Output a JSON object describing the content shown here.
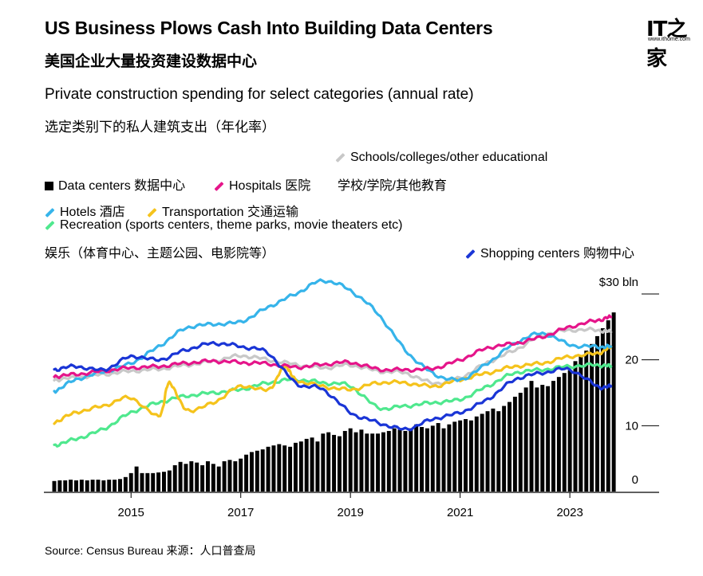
{
  "title": "US Business Plows Cash Into Building Data Centers",
  "title_cn": "美国企业大量投资建设数据中心",
  "subtitle": "Private construction spending for select categories (annual rate)",
  "subtitle_cn": "选定类别下的私人建筑支出（年化率）",
  "logo": {
    "big": "IT之家",
    "small": "www.ithome.com"
  },
  "legend": {
    "schools": "Schools/colleges/other educational",
    "data_centers": "Data centers 数据中心",
    "hospitals": "Hospitals 医院",
    "schools_cn": "学校/学院/其他教育",
    "hotels": "Hotels 酒店",
    "transportation": "Transportation 交通运输",
    "recreation": "Recreation (sports centers, theme parks, movie theaters etc)",
    "recreation_cn": "娱乐（体育中心、主题公园、电影院等）",
    "shopping": "Shopping centers 购物中心"
  },
  "source": "Source: Census Bureau 来源：人口普查局",
  "colors": {
    "data_centers": "#000000",
    "hospitals": "#e5158a",
    "schools": "#c8c8c8",
    "hotels": "#36b4ea",
    "transportation": "#f5c31c",
    "recreation": "#4fe88e",
    "shopping": "#1a35d6"
  },
  "chart_data": {
    "type": "bar+line",
    "title": "US Business Plows Cash Into Building Data Centers",
    "units": "$ bln",
    "x_range": [
      2013.6,
      2023.9
    ],
    "ylim": [
      0,
      30
    ],
    "y_ticks": [
      {
        "value": 0,
        "label": "0"
      },
      {
        "value": 10,
        "label": "10"
      },
      {
        "value": 20,
        "label": "20"
      },
      {
        "value": 30,
        "label": "$30 bln"
      }
    ],
    "x_ticks": [
      {
        "value": 2015,
        "label": "2015"
      },
      {
        "value": 2017,
        "label": "2017"
      },
      {
        "value": 2019,
        "label": "2019"
      },
      {
        "value": 2021,
        "label": "2021"
      },
      {
        "value": 2023,
        "label": "2023"
      }
    ],
    "bars": {
      "name": "Data centers",
      "x": [
        2013.6,
        2013.7,
        2013.8,
        2013.9,
        2014.0,
        2014.1,
        2014.2,
        2014.3,
        2014.4,
        2014.5,
        2014.6,
        2014.7,
        2014.8,
        2014.9,
        2015.0,
        2015.1,
        2015.2,
        2015.3,
        2015.4,
        2015.5,
        2015.6,
        2015.7,
        2015.8,
        2015.9,
        2016.0,
        2016.1,
        2016.2,
        2016.3,
        2016.4,
        2016.5,
        2016.6,
        2016.7,
        2016.8,
        2016.9,
        2017.0,
        2017.1,
        2017.2,
        2017.3,
        2017.4,
        2017.5,
        2017.6,
        2017.7,
        2017.8,
        2017.9,
        2018.0,
        2018.1,
        2018.2,
        2018.3,
        2018.4,
        2018.5,
        2018.6,
        2018.7,
        2018.8,
        2018.9,
        2019.0,
        2019.1,
        2019.2,
        2019.3,
        2019.4,
        2019.5,
        2019.6,
        2019.7,
        2019.8,
        2019.9,
        2020.0,
        2020.1,
        2020.2,
        2020.3,
        2020.4,
        2020.5,
        2020.6,
        2020.7,
        2020.8,
        2020.9,
        2021.0,
        2021.1,
        2021.2,
        2021.3,
        2021.4,
        2021.5,
        2021.6,
        2021.7,
        2021.8,
        2021.9,
        2022.0,
        2022.1,
        2022.2,
        2022.3,
        2022.4,
        2022.5,
        2022.6,
        2022.7,
        2022.8,
        2022.9,
        2023.0,
        2023.1,
        2023.2,
        2023.3,
        2023.4,
        2023.5,
        2023.6,
        2023.7,
        2023.8
      ],
      "values": [
        1.6,
        1.7,
        1.7,
        1.8,
        1.7,
        1.8,
        1.7,
        1.8,
        1.8,
        1.7,
        1.8,
        1.8,
        1.9,
        2.2,
        2.8,
        3.8,
        2.8,
        2.8,
        2.8,
        2.9,
        3.0,
        3.2,
        4.0,
        4.5,
        4.2,
        4.6,
        4.4,
        4.0,
        4.6,
        4.2,
        3.8,
        4.6,
        4.8,
        4.6,
        5.0,
        5.6,
        6.0,
        6.2,
        6.4,
        6.8,
        7.0,
        7.2,
        7.0,
        6.8,
        7.4,
        7.6,
        8.0,
        8.2,
        7.6,
        8.8,
        9.0,
        8.6,
        8.4,
        9.2,
        9.6,
        9.0,
        9.4,
        8.8,
        8.8,
        8.8,
        9.0,
        9.2,
        9.6,
        9.4,
        9.2,
        9.6,
        10.2,
        9.8,
        9.6,
        10.0,
        10.4,
        9.6,
        10.2,
        10.6,
        10.8,
        11.0,
        10.8,
        11.4,
        11.8,
        12.2,
        12.6,
        12.2,
        13.0,
        13.6,
        14.4,
        15.0,
        15.8,
        16.8,
        15.8,
        16.2,
        16.0,
        16.8,
        17.4,
        18.0,
        18.4,
        19.8,
        20.6,
        21.4,
        22.4,
        23.6,
        24.8,
        26.0,
        27.2
      ]
    },
    "series": [
      {
        "name": "Hospitals",
        "color": "#e5158a",
        "x": [
          2013.6,
          2014.0,
          2014.5,
          2015.0,
          2015.5,
          2016.0,
          2016.5,
          2017.0,
          2017.5,
          2018.0,
          2018.5,
          2019.0,
          2019.5,
          2020.0,
          2020.5,
          2021.0,
          2021.5,
          2022.0,
          2022.5,
          2023.0,
          2023.5,
          2023.75
        ],
        "values": [
          17.5,
          17.8,
          18.3,
          18.8,
          19.0,
          19.5,
          19.8,
          19.6,
          19.4,
          18.9,
          19.3,
          19.6,
          18.6,
          18.5,
          18.7,
          20.0,
          21.8,
          22.5,
          23.5,
          25.0,
          26.0,
          26.5
        ]
      },
      {
        "name": "Schools/colleges/other educational",
        "color": "#c8c8c8",
        "x": [
          2013.6,
          2014.0,
          2014.5,
          2015.0,
          2015.5,
          2016.0,
          2016.5,
          2017.0,
          2017.5,
          2018.0,
          2018.5,
          2019.0,
          2019.5,
          2020.0,
          2020.5,
          2021.0,
          2021.5,
          2022.0,
          2022.5,
          2023.0,
          2023.5,
          2023.75
        ],
        "values": [
          17.0,
          17.3,
          17.8,
          18.3,
          18.6,
          19.2,
          19.8,
          20.6,
          20.0,
          19.3,
          18.8,
          19.2,
          18.3,
          18.0,
          16.5,
          17.3,
          19.6,
          21.5,
          23.7,
          24.5,
          24.5,
          24.2
        ]
      },
      {
        "name": "Hotels",
        "color": "#36b4ea",
        "x": [
          2013.6,
          2014.0,
          2014.5,
          2015.0,
          2015.5,
          2016.0,
          2016.5,
          2017.0,
          2017.5,
          2018.0,
          2018.5,
          2019.0,
          2019.5,
          2020.0,
          2020.5,
          2021.0,
          2021.5,
          2022.0,
          2022.5,
          2023.0,
          2023.5,
          2023.75
        ],
        "values": [
          15.2,
          17.0,
          18.2,
          19.5,
          22.0,
          24.8,
          25.4,
          25.8,
          28.0,
          30.0,
          32.0,
          30.5,
          27.0,
          21.5,
          18.0,
          17.0,
          19.5,
          22.5,
          24.0,
          22.3,
          22.0,
          22.0
        ]
      },
      {
        "name": "Transportation",
        "color": "#f5c31c",
        "x": [
          2013.6,
          2014.0,
          2014.5,
          2015.0,
          2015.5,
          2015.7,
          2016.0,
          2016.5,
          2017.0,
          2017.5,
          2017.8,
          2018.0,
          2018.5,
          2019.0,
          2019.5,
          2020.0,
          2020.5,
          2021.0,
          2021.5,
          2022.0,
          2022.5,
          2023.0,
          2023.5,
          2023.75
        ],
        "values": [
          10.5,
          12.0,
          13.0,
          14.2,
          11.5,
          16.5,
          12.5,
          13.5,
          16.0,
          15.5,
          19.0,
          17.0,
          16.0,
          15.5,
          16.5,
          16.5,
          16.0,
          17.0,
          18.0,
          19.0,
          19.5,
          20.5,
          21.0,
          22.0
        ]
      },
      {
        "name": "Recreation",
        "color": "#4fe88e",
        "x": [
          2013.6,
          2014.0,
          2014.5,
          2015.0,
          2015.5,
          2016.0,
          2016.5,
          2017.0,
          2017.5,
          2018.0,
          2018.5,
          2019.0,
          2019.5,
          2020.0,
          2020.5,
          2021.0,
          2021.5,
          2022.0,
          2022.5,
          2023.0,
          2023.5,
          2023.75
        ],
        "values": [
          7.0,
          8.0,
          9.5,
          12.0,
          13.5,
          14.5,
          15.0,
          15.5,
          16.5,
          17.0,
          16.5,
          16.0,
          12.8,
          13.0,
          13.5,
          14.0,
          16.0,
          18.0,
          18.5,
          19.0,
          19.2,
          19.0
        ]
      },
      {
        "name": "Shopping centers",
        "color": "#1a35d6",
        "x": [
          2013.6,
          2014.0,
          2014.5,
          2015.0,
          2015.5,
          2016.0,
          2016.5,
          2017.0,
          2017.5,
          2018.0,
          2018.5,
          2019.0,
          2019.5,
          2020.0,
          2020.5,
          2021.0,
          2021.5,
          2022.0,
          2022.5,
          2023.0,
          2023.5,
          2023.75
        ],
        "values": [
          18.5,
          19.0,
          18.5,
          20.5,
          20.0,
          21.5,
          22.5,
          22.0,
          21.0,
          16.5,
          15.5,
          12.0,
          10.5,
          9.5,
          11.0,
          12.0,
          14.0,
          17.0,
          18.0,
          18.5,
          16.0,
          16.0
        ]
      }
    ]
  }
}
